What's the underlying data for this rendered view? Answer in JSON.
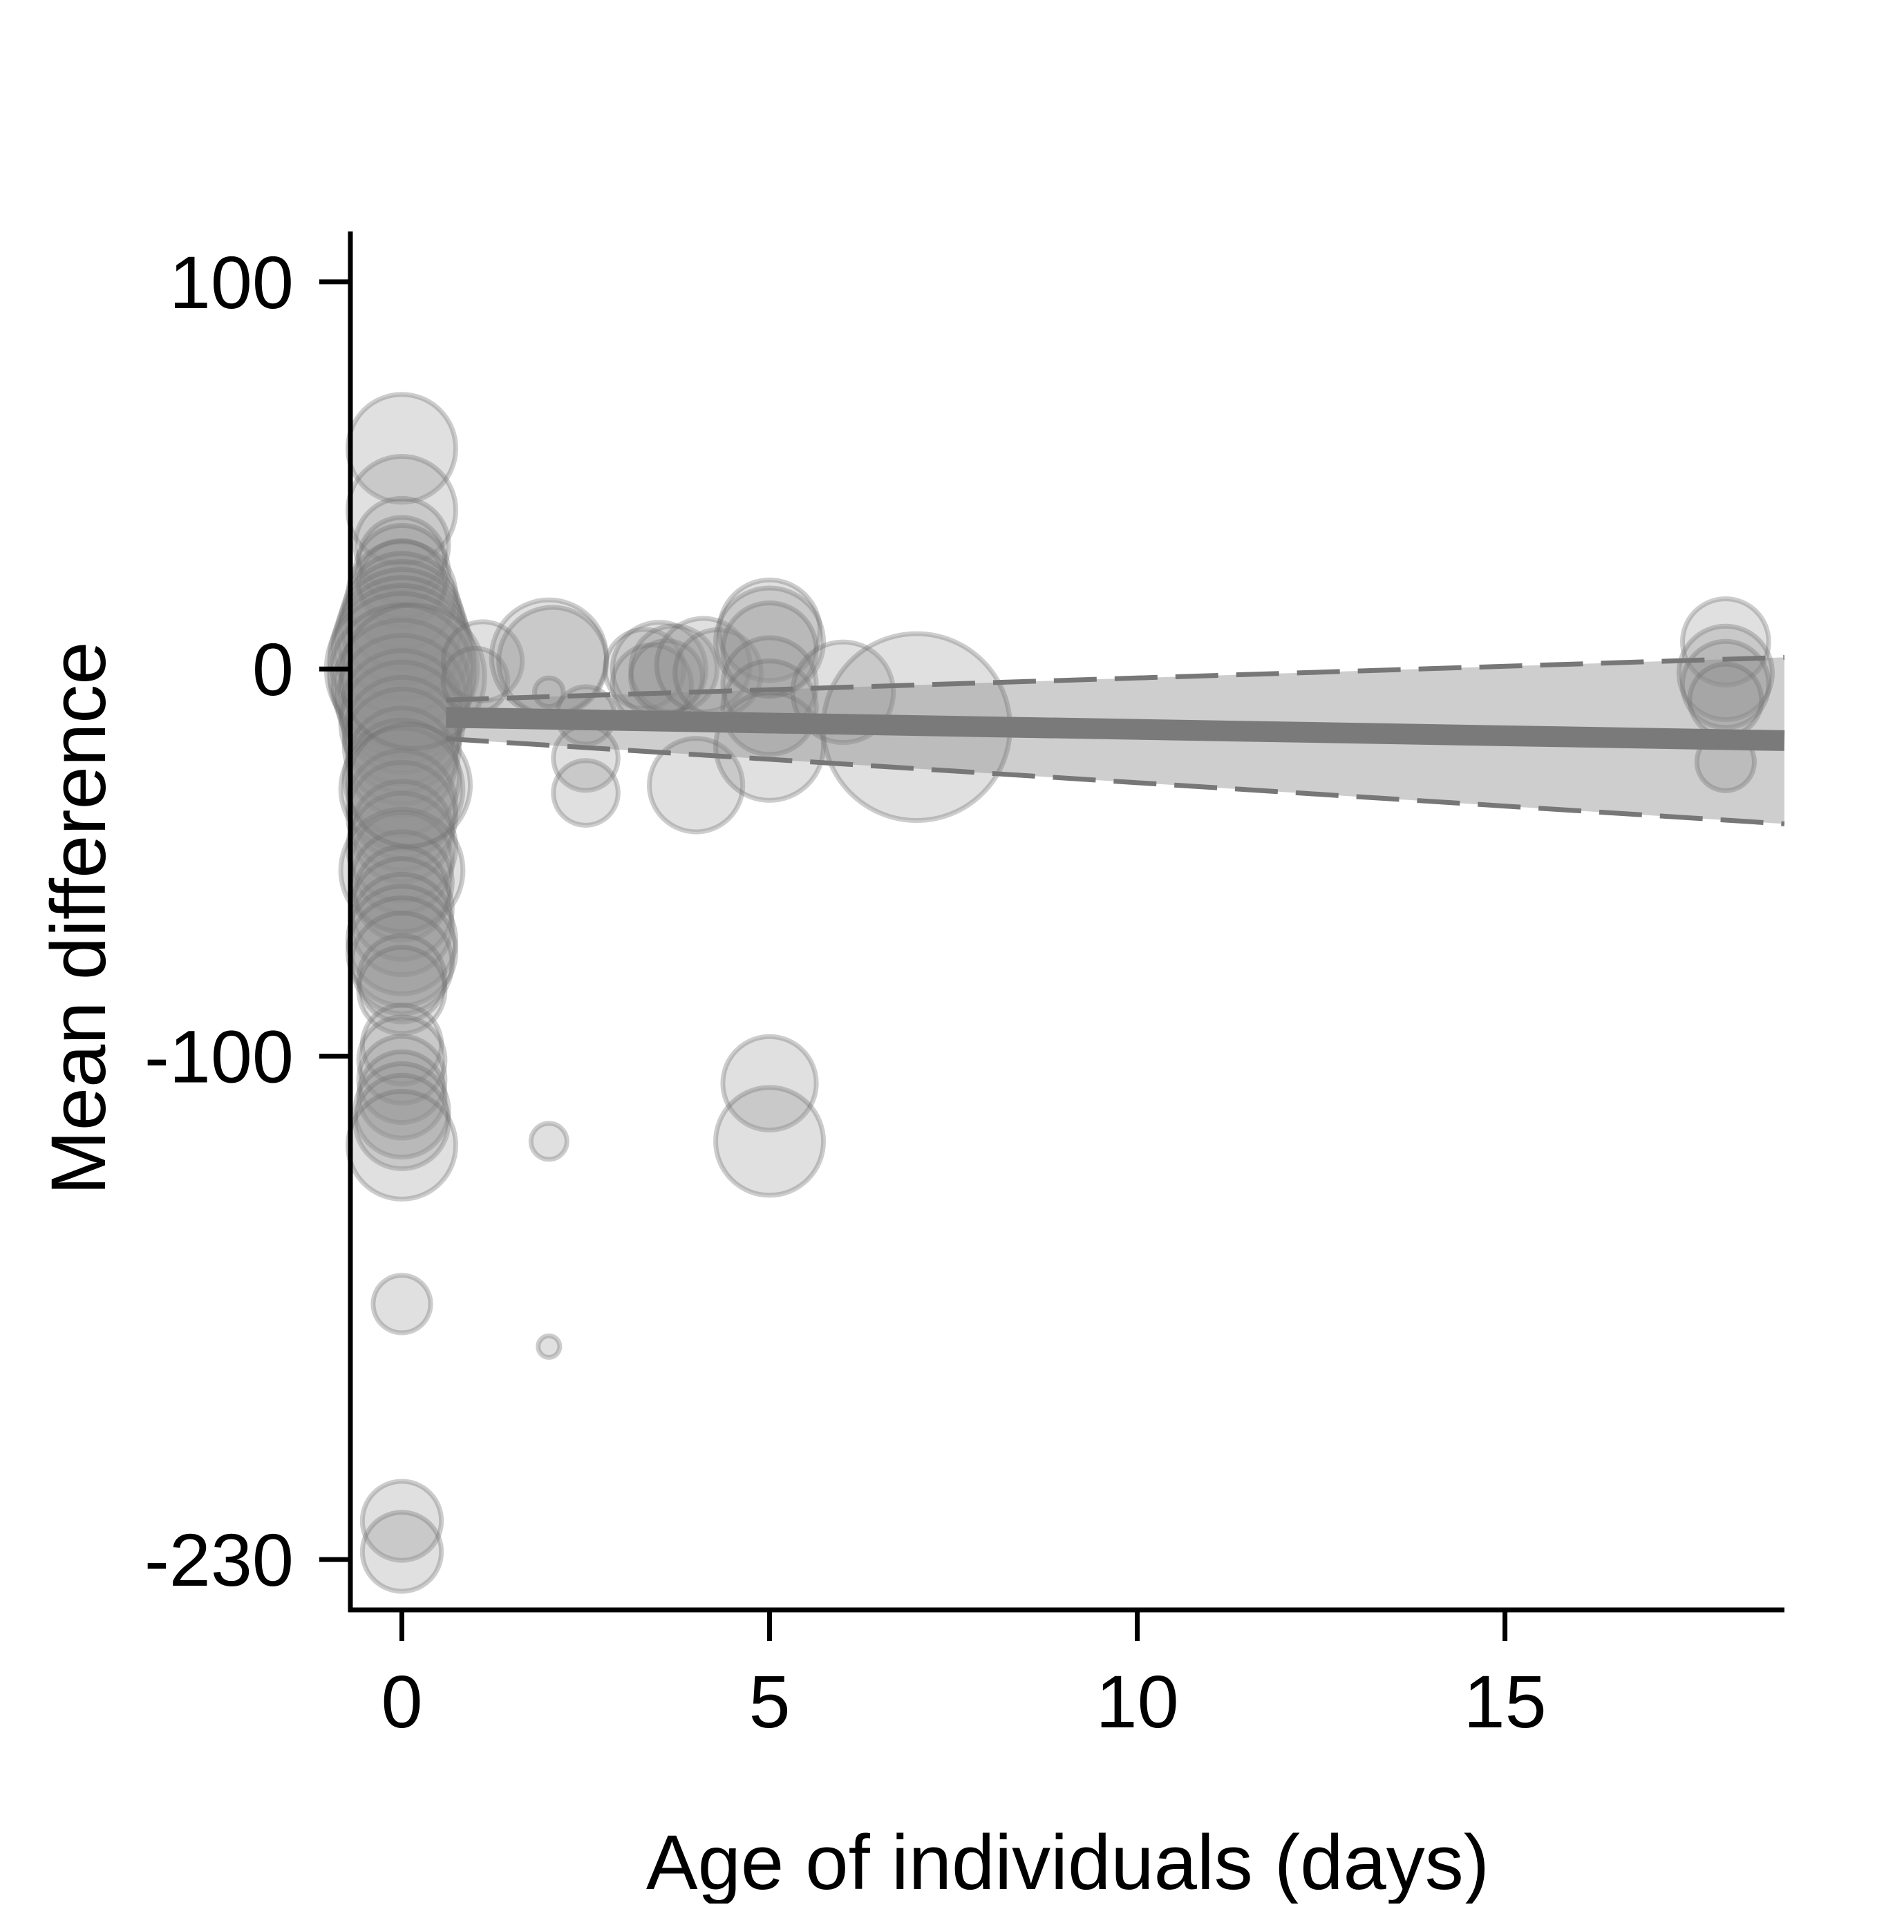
{
  "chart_data": {
    "type": "scatter",
    "title": "",
    "xlabel": "Age of individuals (days)",
    "ylabel": "Mean difference",
    "xlim": [
      -0.7,
      18.8
    ],
    "ylim": [
      -243,
      113
    ],
    "x_ticks": [
      0,
      5,
      10,
      15
    ],
    "x_tick_labels": [
      "0",
      "5",
      "10",
      "15"
    ],
    "y_ticks": [
      100,
      0,
      -100,
      -230
    ],
    "y_tick_labels": [
      "100",
      "0",
      "-100",
      "-230"
    ],
    "grid": false,
    "legend": "none",
    "colors": {
      "point_fill": "#8f8f8f",
      "point_stroke": "#6f6f6f",
      "fit_line": "#7a7a7a",
      "ci_band": "#bdbdbd",
      "ci_dashed": "#777777"
    },
    "points": [
      {
        "x": 0,
        "y": 57,
        "size": 30
      },
      {
        "x": 0,
        "y": 41,
        "size": 30
      },
      {
        "x": 0,
        "y": 32,
        "size": 26
      },
      {
        "x": 0,
        "y": 28,
        "size": 24
      },
      {
        "x": 0,
        "y": 25,
        "size": 26
      },
      {
        "x": 0,
        "y": 22,
        "size": 24
      },
      {
        "x": 0,
        "y": 19,
        "size": 30
      },
      {
        "x": 0,
        "y": 15,
        "size": 32
      },
      {
        "x": 0,
        "y": 12,
        "size": 34
      },
      {
        "x": 0,
        "y": 9,
        "size": 36
      },
      {
        "x": 0,
        "y": 6,
        "size": 38
      },
      {
        "x": 0,
        "y": 3,
        "size": 40
      },
      {
        "x": 0,
        "y": 0,
        "size": 42
      },
      {
        "x": 0,
        "y": -2,
        "size": 40
      },
      {
        "x": 0,
        "y": -5,
        "size": 38
      },
      {
        "x": 0,
        "y": -8,
        "size": 36
      },
      {
        "x": 0,
        "y": -11,
        "size": 34
      },
      {
        "x": 0,
        "y": -14,
        "size": 34
      },
      {
        "x": 0,
        "y": -17,
        "size": 32
      },
      {
        "x": 0,
        "y": -20,
        "size": 32
      },
      {
        "x": 0,
        "y": -24,
        "size": 30
      },
      {
        "x": 0,
        "y": -28,
        "size": 32
      },
      {
        "x": 0,
        "y": -31,
        "size": 34
      },
      {
        "x": 0,
        "y": -35,
        "size": 30
      },
      {
        "x": 0,
        "y": -38,
        "size": 30
      },
      {
        "x": 0,
        "y": -42,
        "size": 28
      },
      {
        "x": 0,
        "y": -46,
        "size": 30
      },
      {
        "x": 0,
        "y": -50,
        "size": 28
      },
      {
        "x": 0,
        "y": -52,
        "size": 34
      },
      {
        "x": 0,
        "y": -55,
        "size": 28
      },
      {
        "x": 0,
        "y": -58,
        "size": 26
      },
      {
        "x": 0,
        "y": -62,
        "size": 28
      },
      {
        "x": 0,
        "y": -66,
        "size": 28
      },
      {
        "x": 0,
        "y": -70,
        "size": 30
      },
      {
        "x": 0,
        "y": -73,
        "size": 30
      },
      {
        "x": 0,
        "y": -76,
        "size": 28
      },
      {
        "x": 0,
        "y": -80,
        "size": 24
      },
      {
        "x": 0,
        "y": -83,
        "size": 24
      },
      {
        "x": 0,
        "y": -97,
        "size": 22
      },
      {
        "x": 0,
        "y": -101,
        "size": 24
      },
      {
        "x": 0,
        "y": -106,
        "size": 24
      },
      {
        "x": 0,
        "y": -110,
        "size": 24
      },
      {
        "x": 0,
        "y": -114,
        "size": 26
      },
      {
        "x": 0,
        "y": -117,
        "size": 26
      },
      {
        "x": 0,
        "y": -123,
        "size": 30
      },
      {
        "x": 0,
        "y": -164,
        "size": 16
      },
      {
        "x": 0,
        "y": -220,
        "size": 22
      },
      {
        "x": 0,
        "y": -228,
        "size": 22
      },
      {
        "x": 0.15,
        "y": -2,
        "size": 40
      },
      {
        "x": 0.1,
        "y": -30,
        "size": 34
      },
      {
        "x": 1.1,
        "y": 2,
        "size": 22
      },
      {
        "x": 1.0,
        "y": -3,
        "size": 18
      },
      {
        "x": 2.0,
        "y": 3,
        "size": 32
      },
      {
        "x": 2.05,
        "y": 2,
        "size": 30
      },
      {
        "x": 2.0,
        "y": -6,
        "size": 8
      },
      {
        "x": 2.0,
        "y": -122,
        "size": 10
      },
      {
        "x": 2.0,
        "y": -175,
        "size": 6
      },
      {
        "x": 2.5,
        "y": -12,
        "size": 16
      },
      {
        "x": 2.5,
        "y": -23,
        "size": 18
      },
      {
        "x": 2.5,
        "y": -32,
        "size": 18
      },
      {
        "x": 3.3,
        "y": 0,
        "size": 22
      },
      {
        "x": 3.5,
        "y": 0,
        "size": 26
      },
      {
        "x": 3.7,
        "y": 0,
        "size": 24
      },
      {
        "x": 3.4,
        "y": -4,
        "size": 22
      },
      {
        "x": 3.6,
        "y": -2,
        "size": 20
      },
      {
        "x": 4.1,
        "y": 1,
        "size": 26
      },
      {
        "x": 4.3,
        "y": -1,
        "size": 24
      },
      {
        "x": 4.0,
        "y": -30,
        "size": 26
      },
      {
        "x": 5.0,
        "y": 10,
        "size": 28
      },
      {
        "x": 5.0,
        "y": 7,
        "size": 30
      },
      {
        "x": 5.0,
        "y": 5,
        "size": 26
      },
      {
        "x": 5.0,
        "y": -4,
        "size": 26
      },
      {
        "x": 5.0,
        "y": -10,
        "size": 26
      },
      {
        "x": 5.0,
        "y": -20,
        "size": 30
      },
      {
        "x": 5.0,
        "y": -107,
        "size": 26
      },
      {
        "x": 5.0,
        "y": -122,
        "size": 30
      },
      {
        "x": 6.0,
        "y": -6,
        "size": 28
      },
      {
        "x": 7.0,
        "y": -15,
        "size": 52
      },
      {
        "x": 18.0,
        "y": 7,
        "size": 24
      },
      {
        "x": 18.0,
        "y": -1,
        "size": 26
      },
      {
        "x": 18.0,
        "y": -4,
        "size": 24
      },
      {
        "x": 18.0,
        "y": -8,
        "size": 20
      },
      {
        "x": 18.0,
        "y": -24,
        "size": 16
      }
    ],
    "fit": {
      "x": [
        0.6,
        18.8
      ],
      "y": [
        -12.5,
        -18.5
      ]
    },
    "ci_upper": {
      "x": [
        0.6,
        18.8
      ],
      "y": [
        -8,
        3
      ]
    },
    "ci_lower": {
      "x": [
        0.6,
        18.8
      ],
      "y": [
        -18,
        -40
      ]
    }
  }
}
